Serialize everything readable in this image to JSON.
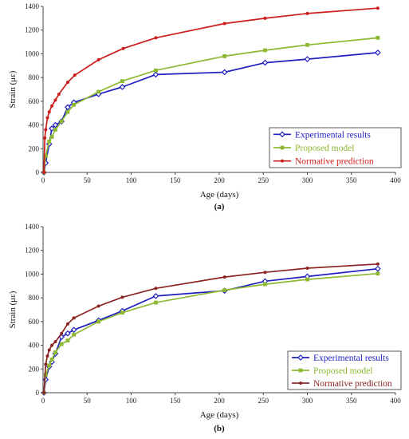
{
  "chart_data": [
    {
      "type": "line",
      "panel_label": "(a)",
      "xlabel": "Age (days)",
      "ylabel": "Strain (με)",
      "xlim": [
        0,
        400
      ],
      "ylim": [
        0,
        1400
      ],
      "x_ticks": [
        0,
        50,
        100,
        150,
        200,
        250,
        300,
        350,
        400
      ],
      "y_ticks": [
        0,
        200,
        400,
        600,
        800,
        1000,
        1200,
        1400
      ],
      "grid": false,
      "legend_position": "bottom-right",
      "series": [
        {
          "name": "Experimental results",
          "color": "#1f1fbf",
          "marker": "diamond-open",
          "x": [
            1,
            3,
            7,
            10,
            14,
            21,
            28,
            35,
            63,
            90,
            128,
            206,
            252,
            300,
            380
          ],
          "y": [
            0,
            80,
            240,
            370,
            400,
            430,
            550,
            590,
            660,
            720,
            825,
            845,
            925,
            955,
            1010
          ]
        },
        {
          "name": "Proposed model",
          "color": "#8db832",
          "marker": "square",
          "x": [
            1,
            3,
            7,
            10,
            14,
            21,
            28,
            35,
            63,
            90,
            128,
            206,
            252,
            300,
            380
          ],
          "y": [
            0,
            140,
            260,
            300,
            360,
            430,
            510,
            570,
            680,
            770,
            860,
            980,
            1030,
            1075,
            1135
          ]
        },
        {
          "name": "Normative prediction",
          "color": "#cc1c1c",
          "marker": "dot",
          "x": [
            1,
            2,
            3,
            5,
            7,
            10,
            14,
            18,
            28,
            36,
            63,
            91,
            128,
            206,
            252,
            300,
            380
          ],
          "y": [
            0,
            290,
            360,
            460,
            510,
            560,
            610,
            660,
            760,
            820,
            950,
            1045,
            1135,
            1255,
            1300,
            1340,
            1385
          ]
        }
      ]
    },
    {
      "type": "line",
      "panel_label": "(b)",
      "xlabel": "Age (days)",
      "ylabel": "Strain (με)",
      "xlim": [
        0,
        400
      ],
      "ylim": [
        0,
        1400
      ],
      "x_ticks": [
        0,
        50,
        100,
        150,
        200,
        250,
        300,
        350,
        400
      ],
      "y_ticks": [
        0,
        200,
        400,
        600,
        800,
        1000,
        1200,
        1400
      ],
      "grid": false,
      "legend_position": "bottom-right",
      "series": [
        {
          "name": "Experimental results",
          "color": "#1f1fbf",
          "marker": "diamond-open",
          "x": [
            1,
            3,
            7,
            10,
            14,
            21,
            28,
            35,
            63,
            90,
            128,
            206,
            252,
            300,
            380
          ],
          "y": [
            0,
            110,
            220,
            260,
            330,
            470,
            500,
            530,
            610,
            690,
            815,
            860,
            940,
            980,
            1045
          ]
        },
        {
          "name": "Proposed model",
          "color": "#8db832",
          "marker": "square",
          "x": [
            1,
            3,
            7,
            10,
            14,
            21,
            28,
            35,
            63,
            90,
            128,
            206,
            252,
            300,
            380
          ],
          "y": [
            0,
            150,
            230,
            280,
            340,
            410,
            440,
            490,
            600,
            675,
            760,
            865,
            915,
            955,
            1005
          ]
        },
        {
          "name": "Normative prediction",
          "color": "#8b2424",
          "marker": "dot",
          "x": [
            1,
            3,
            5,
            7,
            10,
            14,
            21,
            28,
            35,
            63,
            90,
            128,
            206,
            252,
            300,
            380
          ],
          "y": [
            0,
            240,
            310,
            360,
            400,
            430,
            500,
            580,
            630,
            730,
            805,
            880,
            975,
            1015,
            1050,
            1085
          ]
        }
      ]
    }
  ]
}
